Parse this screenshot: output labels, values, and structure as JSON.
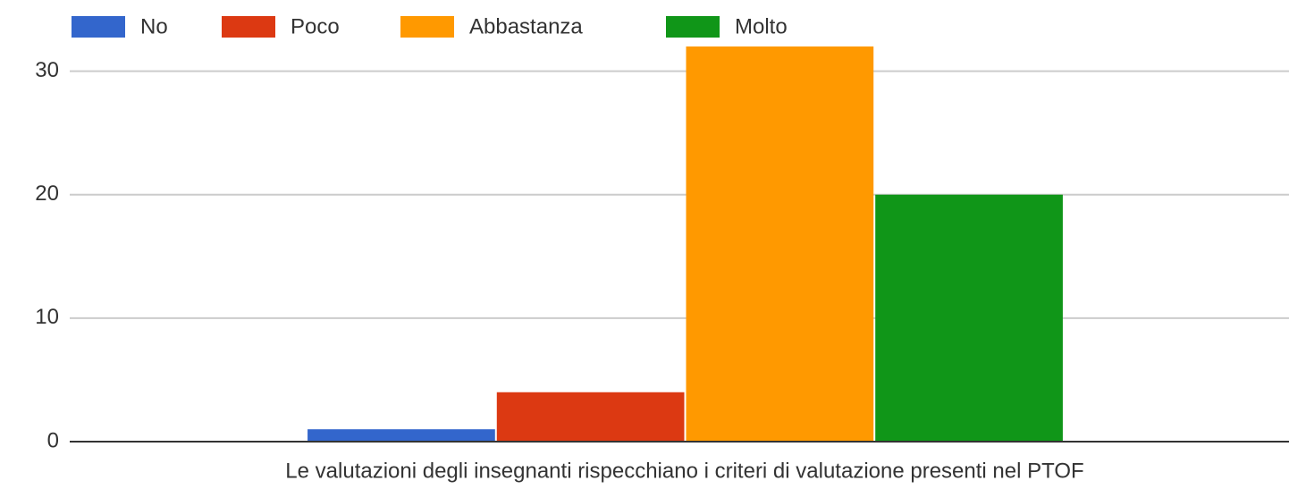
{
  "chart_data": {
    "type": "bar",
    "x_label": "Le valutazioni degli insegnanti rispecchiano i criteri di valutazione presenti nel PTOF",
    "categories": [
      null
    ],
    "series": [
      {
        "name": "No",
        "color": "#3366cc",
        "values": [
          1
        ]
      },
      {
        "name": "Poco",
        "color": "#dc3912",
        "values": [
          4
        ]
      },
      {
        "name": "Abbastanza",
        "color": "#ff9900",
        "values": [
          32
        ]
      },
      {
        "name": "Molto",
        "color": "#109618",
        "values": [
          20
        ]
      }
    ],
    "ylim": [
      0,
      32
    ],
    "yticks": [
      0,
      10,
      20,
      30
    ],
    "grid": true,
    "legend": "top"
  }
}
